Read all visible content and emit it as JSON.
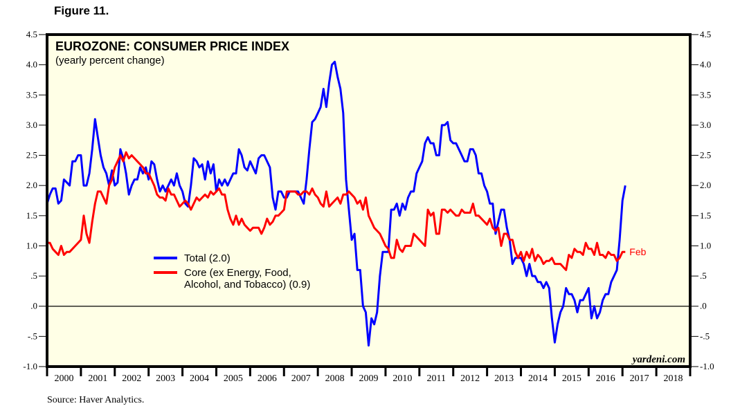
{
  "figure_label": "Figure 11.",
  "source": "Source: Haver Analytics.",
  "chart_data": {
    "type": "line",
    "title": "EUROZONE: CONSUMER PRICE INDEX",
    "subtitle": "(yearly percent change)",
    "xlabel": "",
    "ylabel": "",
    "watermark": "yardeni.com",
    "ylim": [
      -1.0,
      4.5
    ],
    "xlim": [
      2000,
      2019
    ],
    "grid": false,
    "zero_line": true,
    "y_ticks": [
      4.5,
      4.0,
      3.5,
      3.0,
      2.5,
      2.0,
      1.5,
      1.0,
      0.5,
      0.0,
      -0.5,
      -1.0
    ],
    "y_tick_labels": [
      "4.5",
      "4.0",
      "3.5",
      "3.0",
      "2.5",
      "2.0",
      "1.5",
      "1.0",
      ".5",
      ".0",
      "-.5",
      "-1.0"
    ],
    "x_tick_labels": [
      "2000",
      "2001",
      "2002",
      "2003",
      "2004",
      "2005",
      "2006",
      "2007",
      "2008",
      "2009",
      "2010",
      "2011",
      "2012",
      "2013",
      "2014",
      "2015",
      "2016",
      "2017",
      "2018"
    ],
    "legend_position": "center-left",
    "end_label": "Feb",
    "series": [
      {
        "name": "Total (2.0)",
        "color": "#0000ff",
        "start": 2000.0,
        "step_months": 1,
        "values": [
          1.7,
          1.85,
          1.95,
          1.95,
          1.7,
          1.75,
          2.1,
          2.05,
          2.0,
          2.4,
          2.4,
          2.5,
          2.5,
          2.0,
          2.0,
          2.2,
          2.6,
          3.1,
          2.8,
          2.5,
          2.3,
          2.2,
          2.0,
          2.25,
          2.0,
          2.05,
          2.6,
          2.45,
          2.2,
          1.85,
          2.0,
          2.1,
          2.1,
          2.3,
          2.2,
          2.3,
          2.1,
          2.4,
          2.35,
          2.1,
          1.9,
          2.0,
          1.9,
          2.0,
          2.1,
          2.0,
          2.2,
          2.0,
          1.9,
          1.7,
          1.65,
          2.0,
          2.45,
          2.4,
          2.3,
          2.35,
          2.1,
          2.4,
          2.2,
          2.35,
          1.9,
          2.1,
          2.0,
          2.1,
          2.0,
          2.1,
          2.2,
          2.2,
          2.6,
          2.5,
          2.3,
          2.25,
          2.4,
          2.3,
          2.2,
          2.45,
          2.5,
          2.5,
          2.4,
          2.3,
          1.8,
          1.6,
          1.9,
          1.9,
          1.8,
          1.8,
          1.9,
          1.9,
          1.9,
          1.9,
          1.8,
          1.7,
          2.1,
          2.6,
          3.05,
          3.1,
          3.2,
          3.3,
          3.6,
          3.3,
          3.7,
          4.0,
          4.05,
          3.8,
          3.6,
          3.2,
          2.1,
          1.6,
          1.1,
          1.2,
          0.6,
          0.6,
          0.0,
          -0.1,
          -0.65,
          -0.2,
          -0.3,
          -0.1,
          0.5,
          0.9,
          0.9,
          0.9,
          1.6,
          1.6,
          1.7,
          1.5,
          1.7,
          1.6,
          1.8,
          1.9,
          1.9,
          2.2,
          2.3,
          2.4,
          2.7,
          2.8,
          2.7,
          2.7,
          2.5,
          2.5,
          3.0,
          3.0,
          3.05,
          2.75,
          2.7,
          2.7,
          2.6,
          2.5,
          2.4,
          2.4,
          2.6,
          2.6,
          2.5,
          2.2,
          2.2,
          2.0,
          1.9,
          1.7,
          1.7,
          1.2,
          1.4,
          1.6,
          1.6,
          1.3,
          1.1,
          0.7,
          0.8,
          0.8,
          0.8,
          0.7,
          0.5,
          0.7,
          0.5,
          0.5,
          0.4,
          0.4,
          0.3,
          0.4,
          0.3,
          -0.2,
          -0.6,
          -0.3,
          -0.1,
          0.0,
          0.3,
          0.2,
          0.2,
          0.1,
          -0.1,
          0.1,
          0.1,
          0.2,
          0.3,
          -0.2,
          0.0,
          -0.2,
          -0.1,
          0.1,
          0.2,
          0.2,
          0.4,
          0.5,
          0.6,
          1.1,
          1.75,
          2.0
        ]
      },
      {
        "name": "Core (ex Energy, Food, Alcohol, and Tobacco) (0.9)",
        "color": "#ff0000",
        "start": 2000.0,
        "step_months": 1,
        "values": [
          1.05,
          1.05,
          0.95,
          0.9,
          0.85,
          1.0,
          0.85,
          0.9,
          0.9,
          0.95,
          1.0,
          1.05,
          1.1,
          1.5,
          1.2,
          1.05,
          1.4,
          1.7,
          1.9,
          1.9,
          1.8,
          1.7,
          2.0,
          2.1,
          2.3,
          2.4,
          2.5,
          2.4,
          2.55,
          2.45,
          2.5,
          2.45,
          2.4,
          2.35,
          2.3,
          2.2,
          2.2,
          2.1,
          2.0,
          1.85,
          1.8,
          1.8,
          1.75,
          1.95,
          1.85,
          1.85,
          1.75,
          1.65,
          1.7,
          1.75,
          1.7,
          1.6,
          1.7,
          1.8,
          1.75,
          1.8,
          1.85,
          1.8,
          1.9,
          1.85,
          1.9,
          1.95,
          1.85,
          1.85,
          1.6,
          1.45,
          1.35,
          1.5,
          1.35,
          1.45,
          1.35,
          1.3,
          1.25,
          1.3,
          1.3,
          1.3,
          1.2,
          1.3,
          1.45,
          1.35,
          1.4,
          1.5,
          1.5,
          1.55,
          1.6,
          1.9,
          1.9,
          1.9,
          1.9,
          1.85,
          1.85,
          1.9,
          1.9,
          1.85,
          1.95,
          1.85,
          1.8,
          1.7,
          1.65,
          1.9,
          1.65,
          1.7,
          1.75,
          1.8,
          1.7,
          1.85,
          1.85,
          1.9,
          1.85,
          1.8,
          1.7,
          1.75,
          1.6,
          1.8,
          1.5,
          1.4,
          1.3,
          1.25,
          1.2,
          1.1,
          1.0,
          0.95,
          0.8,
          0.8,
          1.1,
          0.95,
          0.9,
          1.0,
          1.0,
          1.0,
          1.2,
          1.15,
          1.1,
          1.05,
          1.0,
          1.6,
          1.5,
          1.55,
          1.2,
          1.2,
          1.6,
          1.6,
          1.55,
          1.6,
          1.55,
          1.5,
          1.5,
          1.6,
          1.55,
          1.55,
          1.55,
          1.7,
          1.5,
          1.5,
          1.45,
          1.4,
          1.35,
          1.45,
          1.3,
          1.25,
          1.3,
          1.0,
          1.2,
          1.2,
          1.1,
          1.1,
          0.9,
          0.8,
          0.9,
          0.75,
          0.9,
          0.8,
          0.95,
          0.75,
          0.85,
          0.8,
          0.7,
          0.75,
          0.75,
          0.8,
          0.7,
          0.7,
          0.7,
          0.65,
          0.6,
          0.85,
          0.8,
          0.95,
          0.9,
          0.9,
          0.85,
          1.05,
          0.95,
          0.95,
          0.85,
          1.05,
          0.85,
          0.85,
          0.8,
          0.9,
          0.85,
          0.85,
          0.75,
          0.8,
          0.9,
          0.9
        ]
      }
    ]
  }
}
